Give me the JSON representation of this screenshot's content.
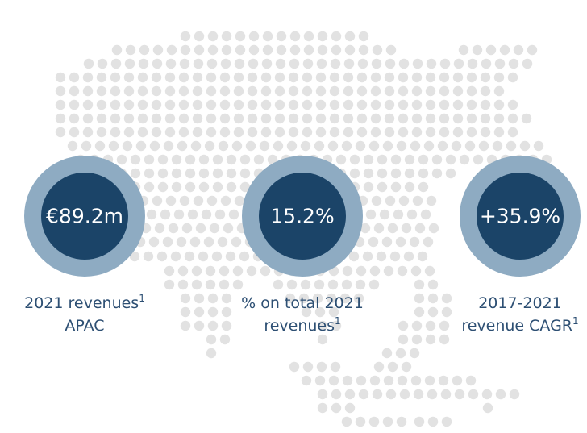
{
  "items": [
    {
      "value": "€89.2m",
      "caption": [
        {
          "text": "2021 revenues",
          "sup": "1"
        },
        {
          "text": "APAC"
        }
      ]
    },
    {
      "value": "15.2%",
      "caption": [
        {
          "text": "% on total 2021"
        },
        {
          "text": "revenues",
          "sup": "1"
        }
      ]
    },
    {
      "value": "+35.9%",
      "caption": [
        {
          "text": "2017-2021"
        },
        {
          "text": "revenue CAGR",
          "sup": "1"
        }
      ]
    }
  ]
}
